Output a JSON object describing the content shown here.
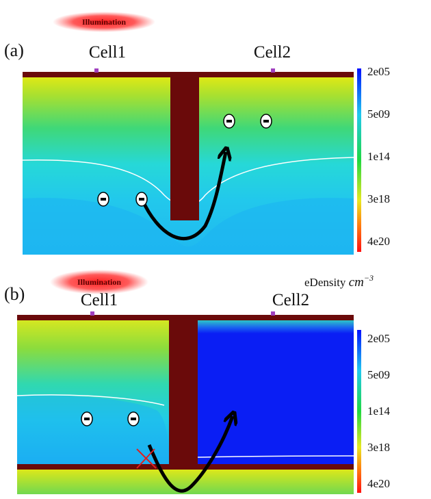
{
  "panels": [
    {
      "label": "(a)",
      "illumination": "Illumination",
      "cells": [
        "Cell1",
        "Cell2"
      ],
      "colorbar_ticks": [
        "2e05",
        "5e09",
        "1e14",
        "3e18",
        "4e20"
      ]
    },
    {
      "label": "(b)",
      "illumination": "Illumination",
      "cells": [
        "Cell1",
        "Cell2"
      ],
      "colorbar_ticks": [
        "2e05",
        "5e09",
        "1e14",
        "3e18",
        "4e20"
      ],
      "colorbar_title": {
        "name": "eDensity",
        "unit": "cm",
        "exponent": "−3"
      }
    }
  ]
}
